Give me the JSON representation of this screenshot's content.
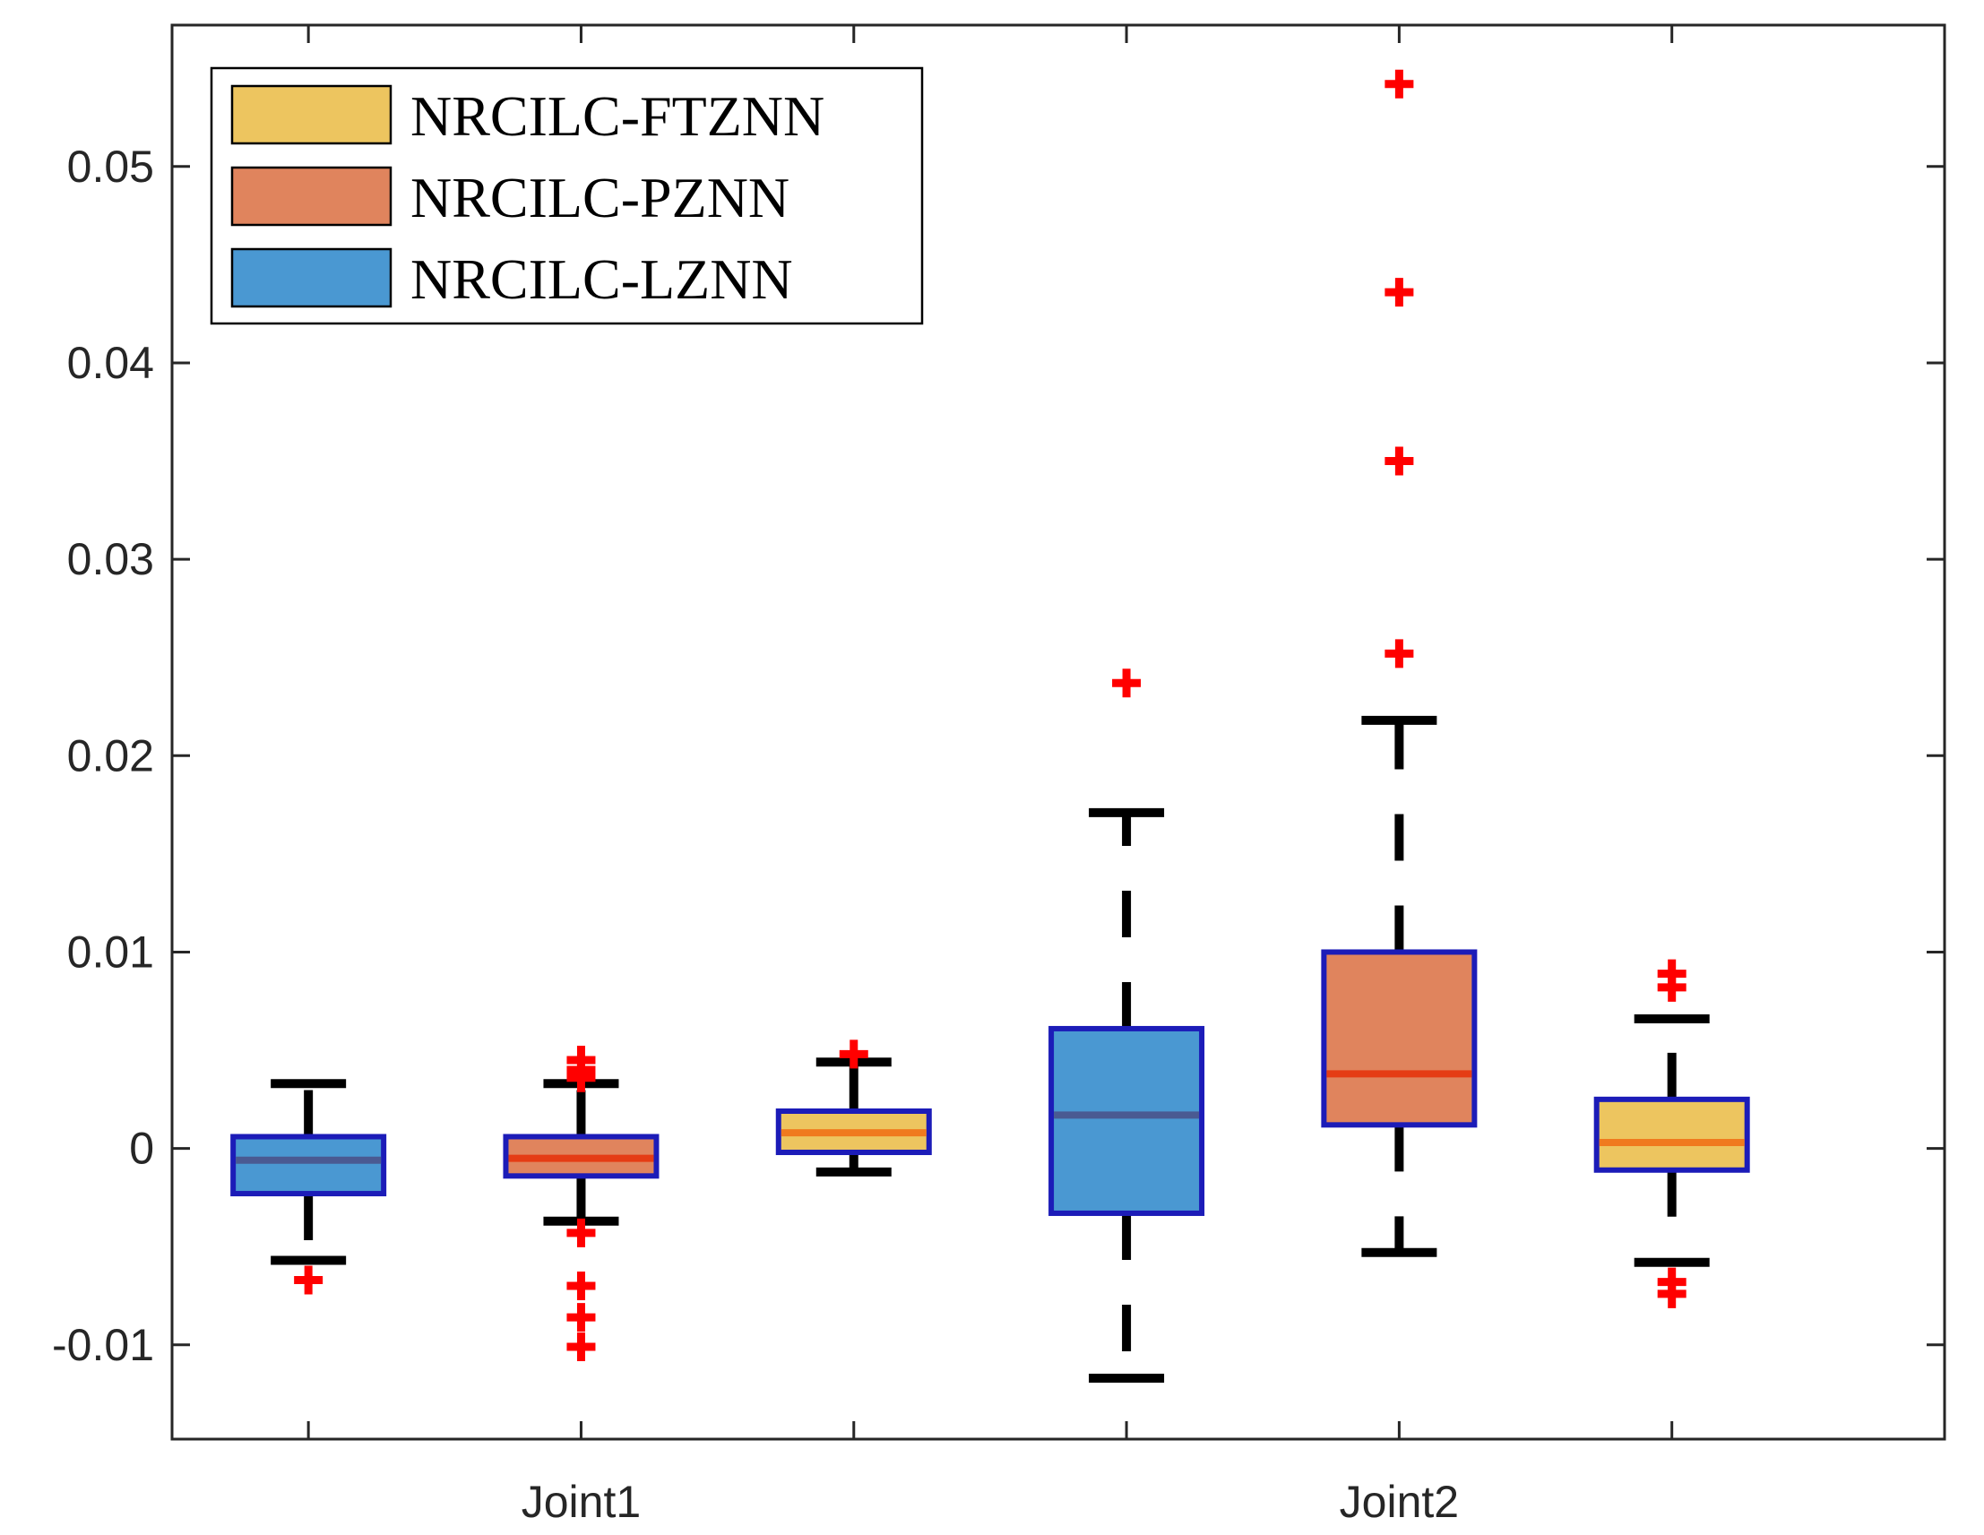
{
  "chart_data": {
    "type": "boxplot",
    "title": "",
    "xlabel": "",
    "ylabel": "",
    "ylim": [
      -0.0148,
      0.0572
    ],
    "yticks": [
      -0.01,
      0,
      0.01,
      0.02,
      0.03,
      0.04,
      0.05
    ],
    "ytick_labels": [
      "-0.01",
      "0",
      "0.01",
      "0.02",
      "0.03",
      "0.04",
      "0.05"
    ],
    "xtick_count": 6,
    "xtick_labels": [
      "",
      "Joint1",
      "",
      "",
      "Joint2",
      ""
    ],
    "grid": false,
    "legend": {
      "position": "top-left",
      "entries": [
        {
          "name": "NRCILC-FTZNN",
          "color": "#EDC55F"
        },
        {
          "name": "NRCILC-PZNN",
          "color": "#E0845D"
        },
        {
          "name": "NRCILC-LZNN",
          "color": "#4A98D2"
        }
      ]
    },
    "colors": {
      "box_edge": "#1C1CB8",
      "whisker": "#000000",
      "outlier": "#FF0000",
      "median_FTZNN": "#F07A1E",
      "median_PZNN": "#E53C14",
      "median_LZNN": "#4A5A92"
    },
    "boxes": [
      {
        "joint": "Joint1",
        "series": "NRCILC-LZNN",
        "whisker_low": -0.0057,
        "q1": -0.0023,
        "median": -0.0006,
        "q3": 0.0006,
        "whisker_high": 0.0033,
        "outliers": [
          -0.0067
        ]
      },
      {
        "joint": "Joint1",
        "series": "NRCILC-PZNN",
        "whisker_low": -0.0037,
        "q1": -0.0014,
        "median": -0.0005,
        "q3": 0.0006,
        "whisker_high": 0.0033,
        "outliers": [
          0.0045,
          0.004,
          0.0036,
          -0.0043,
          -0.007,
          -0.0086,
          -0.0101
        ]
      },
      {
        "joint": "Joint1",
        "series": "NRCILC-FTZNN",
        "whisker_low": -0.0012,
        "q1": -0.0002,
        "median": 0.0008,
        "q3": 0.0019,
        "whisker_high": 0.0044,
        "outliers": [
          0.0048
        ]
      },
      {
        "joint": "Joint2",
        "series": "NRCILC-LZNN",
        "whisker_low": -0.0117,
        "q1": -0.0033,
        "median": 0.0017,
        "q3": 0.0061,
        "whisker_high": 0.0171,
        "outliers": [
          0.0237
        ]
      },
      {
        "joint": "Joint2",
        "series": "NRCILC-PZNN",
        "whisker_low": -0.0053,
        "q1": 0.0012,
        "median": 0.0038,
        "q3": 0.01,
        "whisker_high": 0.0218,
        "outliers": [
          0.0252,
          0.035,
          0.0436,
          0.0542
        ]
      },
      {
        "joint": "Joint2",
        "series": "NRCILC-FTZNN",
        "whisker_low": -0.0058,
        "q1": -0.0011,
        "median": 0.0003,
        "q3": 0.0025,
        "whisker_high": 0.0066,
        "outliers": [
          0.0089,
          0.0082,
          -0.0068,
          -0.0074
        ]
      }
    ]
  }
}
